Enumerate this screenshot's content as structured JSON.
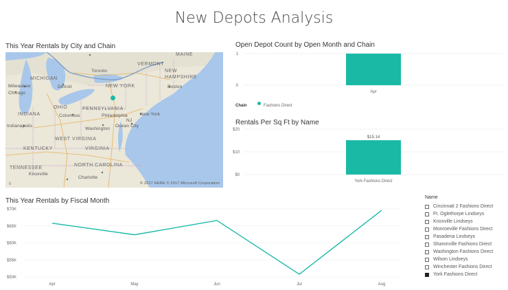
{
  "page_title": "New Depots Analysis",
  "map_visual": {
    "title": "This Year Rentals by City and Chain",
    "labels": [
      "MAINE",
      "VERMONT",
      "NEW",
      "HAMPSHIRE",
      "MICHIGAN",
      "Toronto",
      "NEW YORK",
      "Boston",
      "Milwaukee",
      "Detroit",
      "Chicago",
      "OHIO",
      "PENNSYLVANIA",
      "New York",
      "INDIANA",
      "Columbus",
      "Philadelphia",
      "Indianapolis",
      "Washington",
      "Ocean City",
      "NJ",
      "WEST VIRGINIA",
      "KENTUCKY",
      "VIRGINIA",
      "TENNESSEE",
      "NORTH CAROLINA",
      "Charlotte",
      "Knoxville"
    ],
    "copyright": "© 2017 HERE   © 2017 Microsoft Corporation",
    "bing_logo": "b",
    "marker_color": "#1ab9a6"
  },
  "bar_visual_1": {
    "title": "Open Depot Count by Open Month and Chain",
    "legend_label": "Chain",
    "legend_item": "Fashions Direct",
    "data_label": ""
  },
  "bar_visual_2": {
    "title": "Rentals Per Sq Ft by Name",
    "data_label": "$15.14"
  },
  "line_visual": {
    "title": "This Year Rentals by Fiscal Month"
  },
  "slicer": {
    "title": "Name",
    "items": [
      {
        "label": "Cincinnati 2 Fashions Direct",
        "checked": false
      },
      {
        "label": "Ft. Oglethorpe Lindseys",
        "checked": false
      },
      {
        "label": "Knoxville Lindseys",
        "checked": false
      },
      {
        "label": "Monroeville Fashions Direct",
        "checked": false
      },
      {
        "label": "Pasadena Lindseys",
        "checked": false
      },
      {
        "label": "Sharonville Fashions Direct",
        "checked": false
      },
      {
        "label": "Washington Fashions Direct",
        "checked": false
      },
      {
        "label": "Wilson Lindseys",
        "checked": false
      },
      {
        "label": "Winchester Fashions Direct",
        "checked": false
      },
      {
        "label": "York Fashions Direct",
        "checked": true
      }
    ]
  },
  "colors": {
    "accent": "#1ab9a6",
    "water": "#a9c7ea",
    "land": "#ebe7d9"
  },
  "chart_data": [
    {
      "type": "bar",
      "title": "Open Depot Count by Open Month and Chain",
      "categories": [
        "Apr"
      ],
      "series": [
        {
          "name": "Fashions Direct",
          "values": [
            1
          ]
        }
      ],
      "ylim": [
        0,
        1
      ],
      "yticks": [
        "0",
        "1"
      ],
      "legend": "bottom-left"
    },
    {
      "type": "bar",
      "title": "Rentals Per Sq Ft by Name",
      "categories": [
        "York Fashions Direct"
      ],
      "values": [
        15.14
      ],
      "data_labels": [
        "$15.14"
      ],
      "ylim": [
        0,
        20
      ],
      "yticks": [
        "$0",
        "$10",
        "$20"
      ]
    },
    {
      "type": "line",
      "title": "This Year Rentals by Fiscal Month",
      "categories": [
        "Apr",
        "May",
        "Jun",
        "Jul",
        "Aug"
      ],
      "values": [
        65800,
        62400,
        66600,
        50800,
        69600
      ],
      "ylim": [
        50000,
        70000
      ],
      "yticks": [
        "$50K",
        "$55K",
        "$60K",
        "$65K",
        "$70K"
      ]
    }
  ]
}
